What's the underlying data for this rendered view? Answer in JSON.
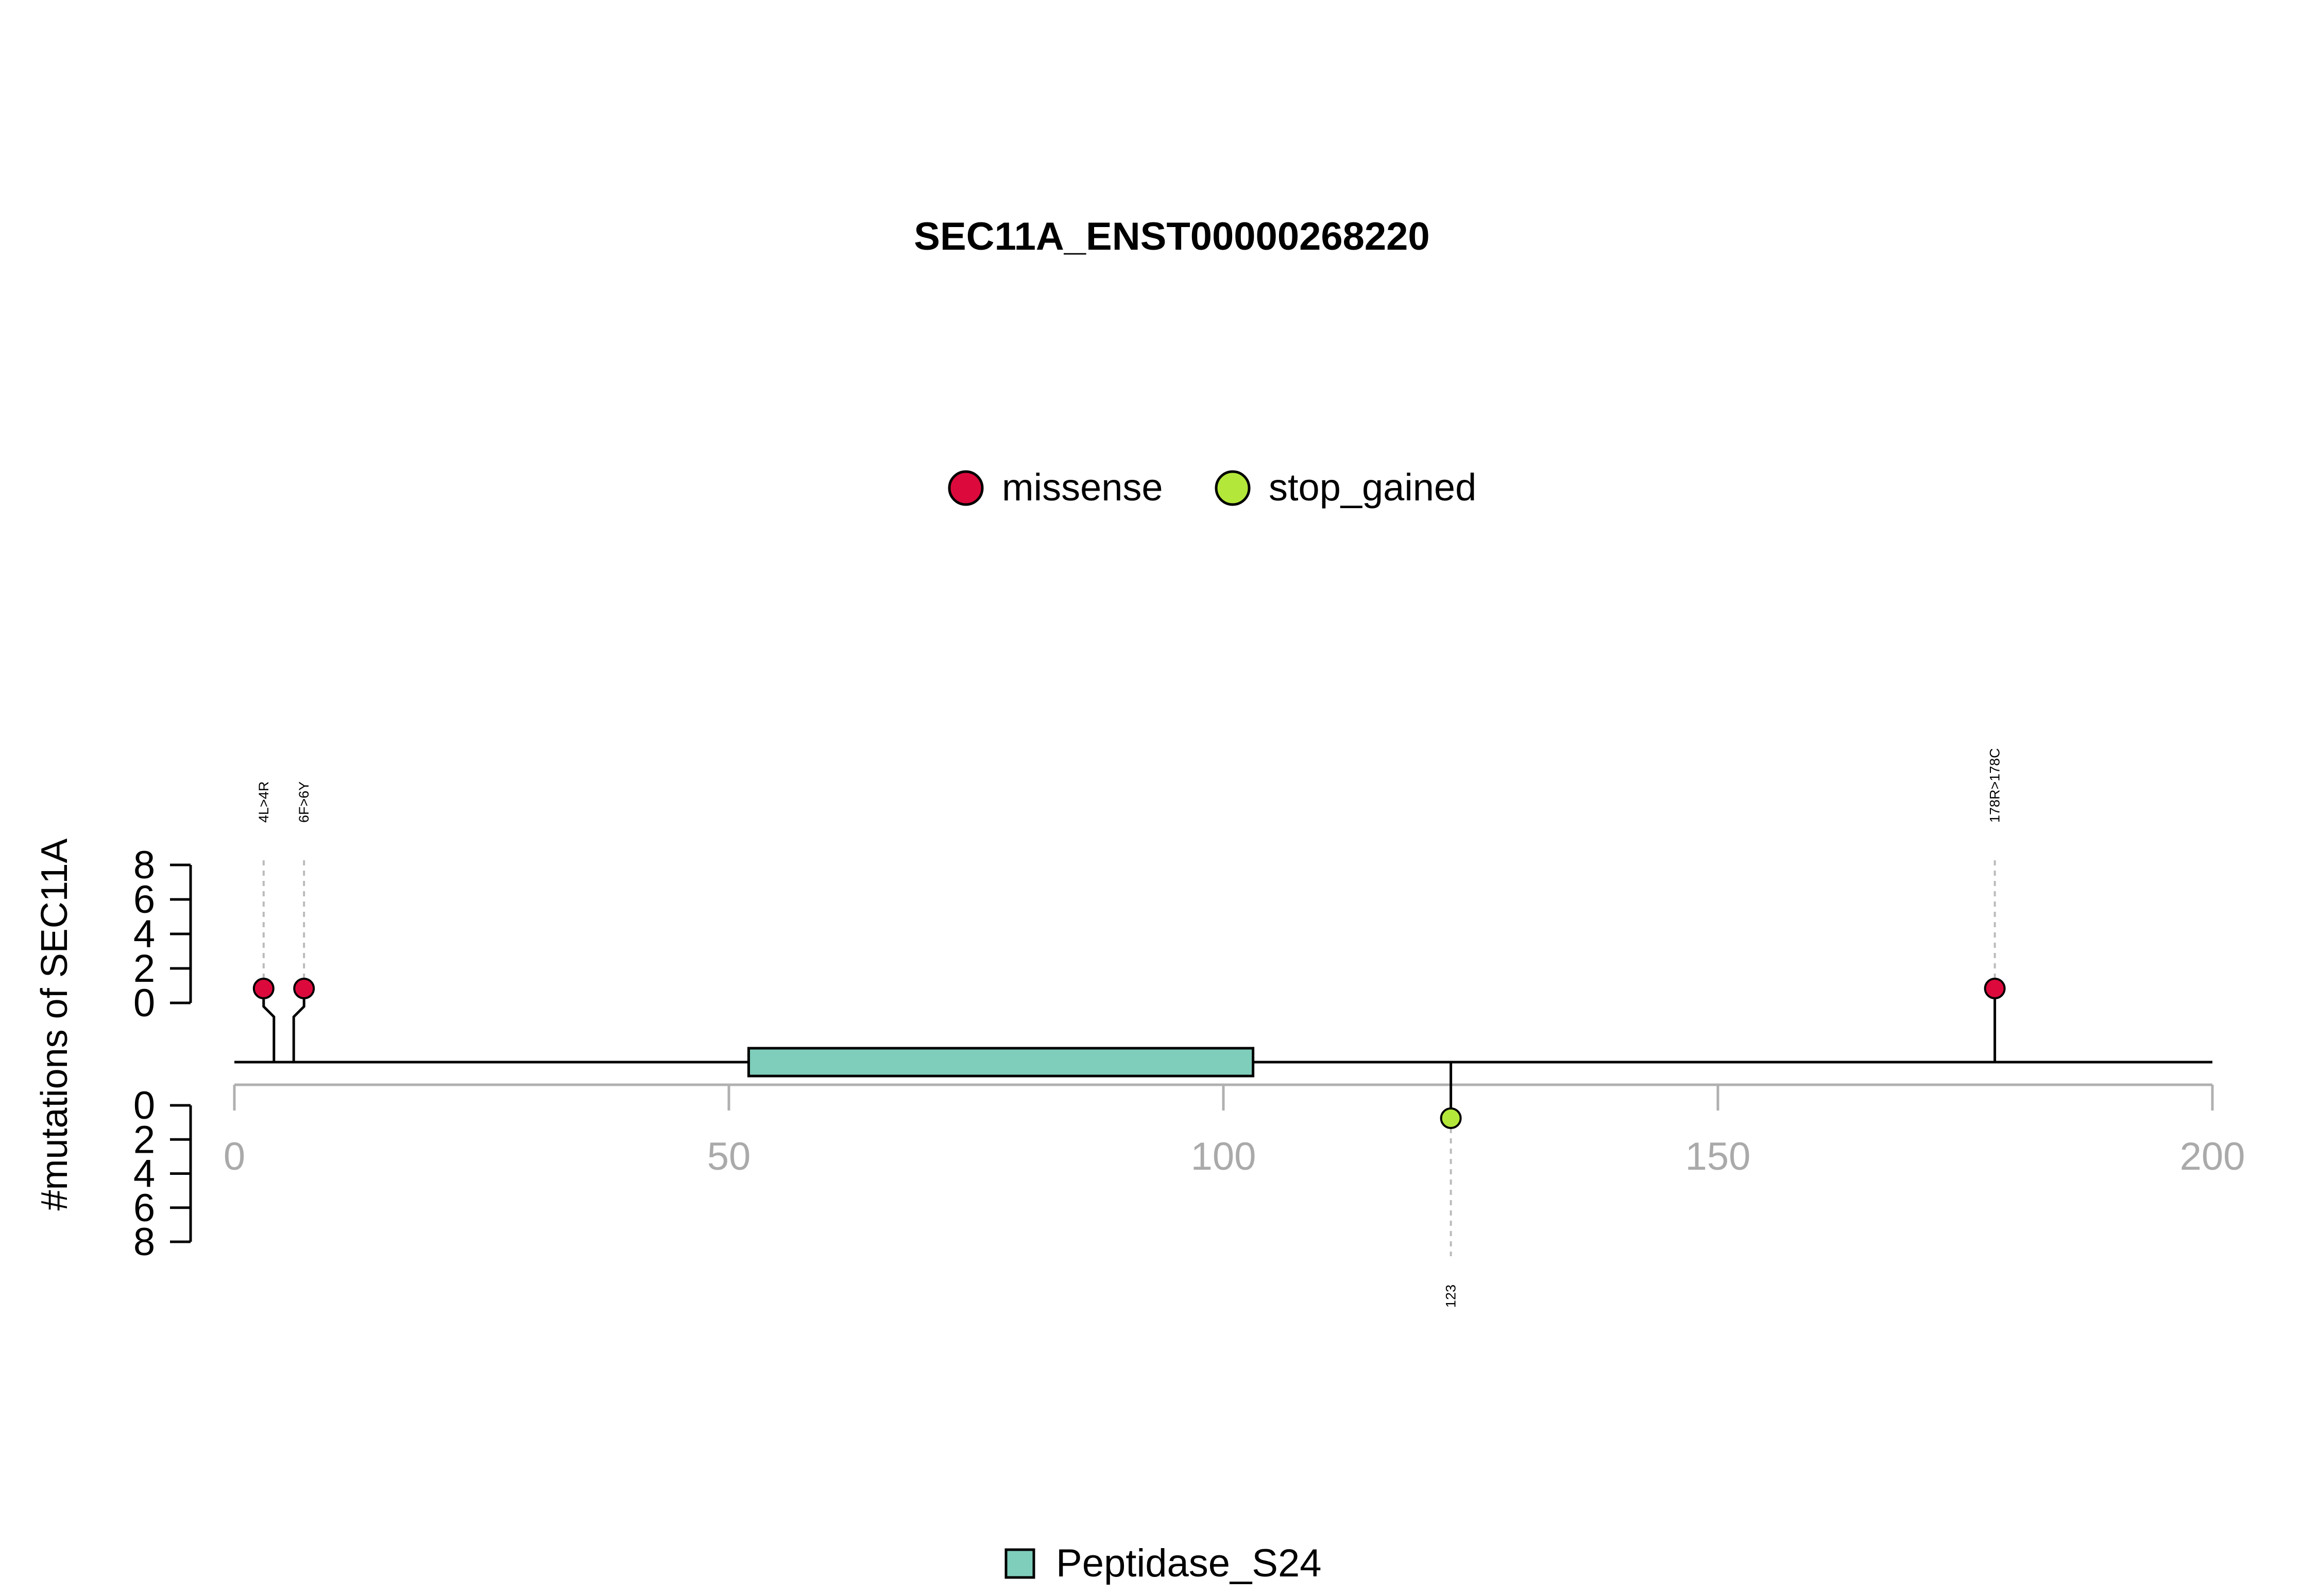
{
  "chart_data": {
    "type": "lollipop",
    "title": "SEC11A_ENST00000268220",
    "ylabel": "#mutations of SEC11A",
    "xlim": [
      0,
      200
    ],
    "x_ticks": [
      0,
      50,
      100,
      150,
      200
    ],
    "y_ticks": [
      0,
      2,
      4,
      6,
      8
    ],
    "ylim": [
      0,
      8
    ],
    "legend": [
      {
        "label": "missense",
        "color": "#DC0A3C"
      },
      {
        "label": "stop_gained",
        "color": "#B3E83A"
      }
    ],
    "domain_legend": [
      {
        "label": "Peptidase_S24",
        "color": "#7FCDBB"
      }
    ],
    "domains": [
      {
        "name": "Peptidase_S24",
        "start": 52,
        "end": 103,
        "color": "#7FCDBB"
      }
    ],
    "mutations": [
      {
        "label": "4L>4R",
        "position": 4,
        "count": 1,
        "type": "missense",
        "strand": "top"
      },
      {
        "label": "6F>6Y",
        "position": 6,
        "count": 1,
        "type": "missense",
        "strand": "top"
      },
      {
        "label": "178R>178C",
        "position": 178,
        "count": 1,
        "type": "missense",
        "strand": "top"
      },
      {
        "label": "123",
        "position": 123,
        "count": 1,
        "type": "stop_gained",
        "strand": "bottom"
      }
    ]
  }
}
